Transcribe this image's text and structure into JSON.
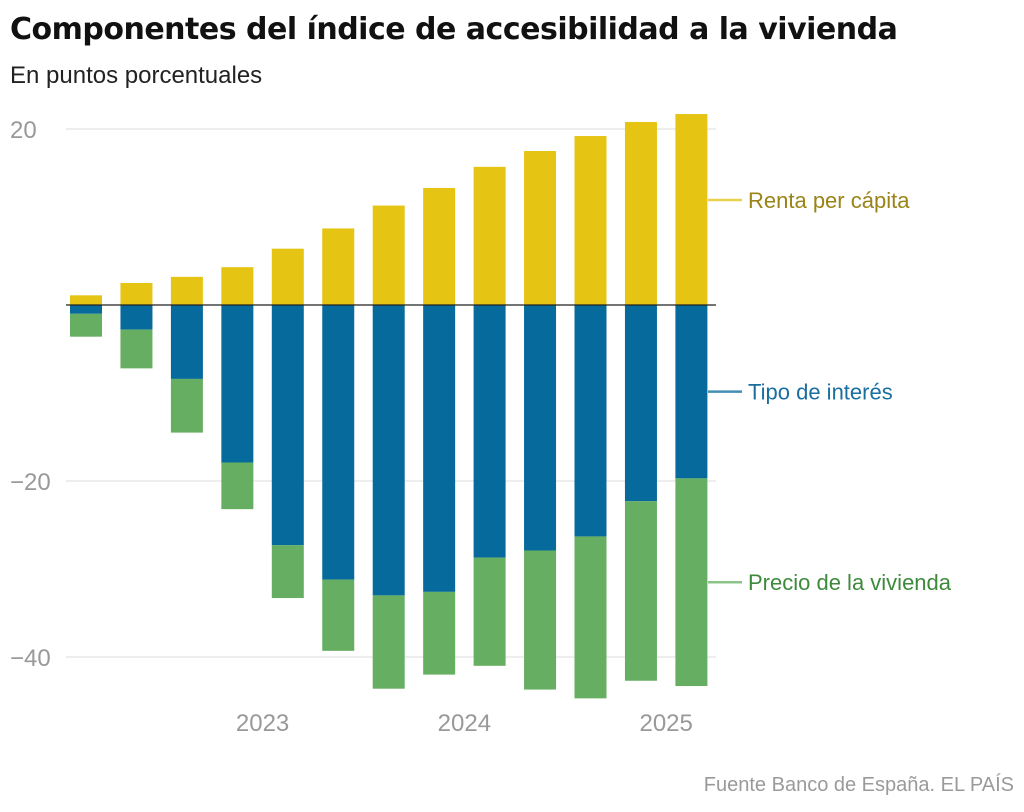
{
  "header": {
    "title": "Componentes del índice de accesibilidad a la vivienda",
    "subtitle": "En puntos porcentuales"
  },
  "footer": {
    "source": "Fuente Banco de España. EL PAÍS"
  },
  "chart_data": {
    "type": "bar",
    "stacked": true,
    "title": "Componentes del índice de accesibilidad a la vivienda",
    "subtitle": "En puntos porcentuales",
    "ylim": [
      -45,
      22
    ],
    "y_ticks": [
      20,
      -20,
      -40
    ],
    "y_tick_labels": [
      "20",
      "−20",
      "−40"
    ],
    "x_tick_labels": [
      {
        "label": "2023",
        "bar_index": 3.5
      },
      {
        "label": "2024",
        "bar_index": 7.5
      },
      {
        "label": "2025",
        "bar_index": 11.5
      }
    ],
    "grid": true,
    "legend": "direct labels right",
    "categories": [
      "",
      "",
      "",
      "",
      "",
      "",
      "",
      "",
      "",
      "",
      "",
      "",
      ""
    ],
    "series": [
      {
        "name": "Renta per cápita",
        "color": "#e5c414",
        "label_color": "#9a8418",
        "values": [
          1.1,
          2.5,
          3.2,
          4.3,
          6.4,
          8.7,
          11.3,
          13.3,
          15.7,
          17.5,
          19.2,
          20.8,
          21.7
        ]
      },
      {
        "name": "Tipo de interés",
        "color": "#076a9c",
        "label_color": "#1a6ea0",
        "values": [
          -1.0,
          -2.8,
          -8.4,
          -17.9,
          -27.3,
          -31.2,
          -33.0,
          -32.6,
          -28.7,
          -27.9,
          -26.3,
          -22.3,
          -19.7
        ]
      },
      {
        "name": "Precio de la vivienda",
        "color": "#66af62",
        "label_color": "#3e8a3c",
        "values": [
          -2.6,
          -4.4,
          -6.1,
          -5.3,
          -6.0,
          -8.1,
          -10.6,
          -9.4,
          -12.3,
          -15.8,
          -18.4,
          -20.4,
          -23.6
        ]
      }
    ]
  }
}
